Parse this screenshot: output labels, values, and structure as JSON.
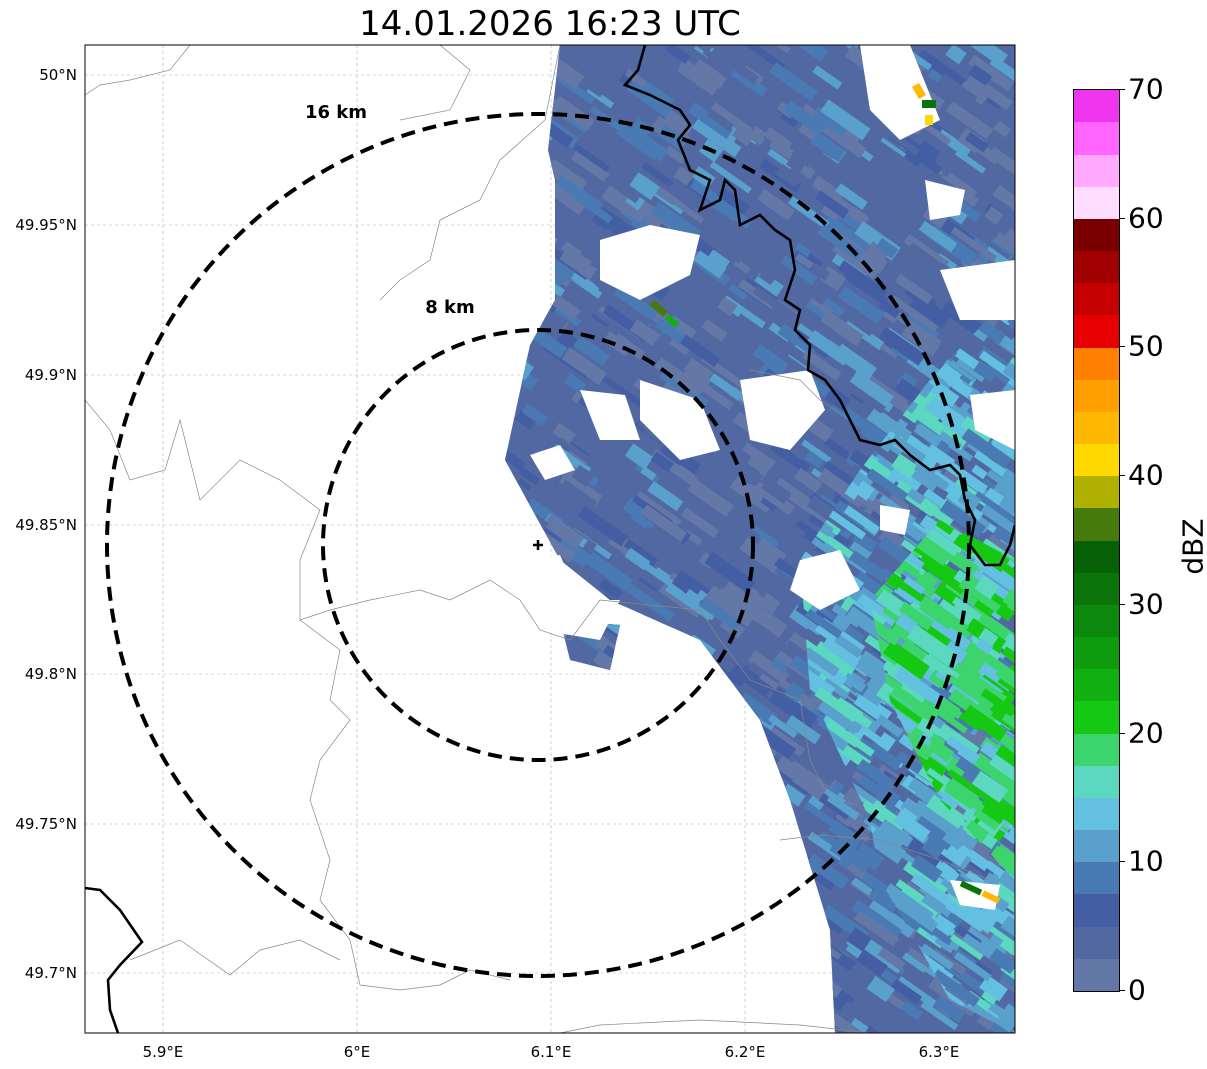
{
  "title": "14.01.2026 16:23 UTC",
  "range_rings": [
    {
      "label": "16 km",
      "radius_km": 16
    },
    {
      "label": "8 km",
      "radius_km": 8
    }
  ],
  "lat_ticks": [
    "50°N",
    "49.95°N",
    "49.9°N",
    "49.85°N",
    "49.8°N",
    "49.75°N",
    "49.7°N"
  ],
  "lon_ticks": [
    "5.9°E",
    "6°E",
    "6.1°E",
    "6.2°E",
    "6.3°E"
  ],
  "colorbar": {
    "label": "dBZ",
    "ticks": [
      "0",
      "10",
      "20",
      "30",
      "40",
      "50",
      "60",
      "70"
    ],
    "range": [
      0,
      70
    ],
    "bin_step": 2.5,
    "colors": [
      "#6478a8",
      "#5268a0",
      "#445ea4",
      "#4a7ab4",
      "#5aa0cc",
      "#64c0e0",
      "#5cd8c0",
      "#3cd46c",
      "#14c814",
      "#10b010",
      "#0e9c0e",
      "#0c880c",
      "#0a740a",
      "#066006",
      "#467a0a",
      "#b0b000",
      "#ffd800",
      "#ffb800",
      "#ff9f00",
      "#ff7f00",
      "#e60000",
      "#c40000",
      "#a00000",
      "#7a0000",
      "#ffddff",
      "#ffaaff",
      "#ff66ff",
      "#f035f0"
    ]
  }
}
